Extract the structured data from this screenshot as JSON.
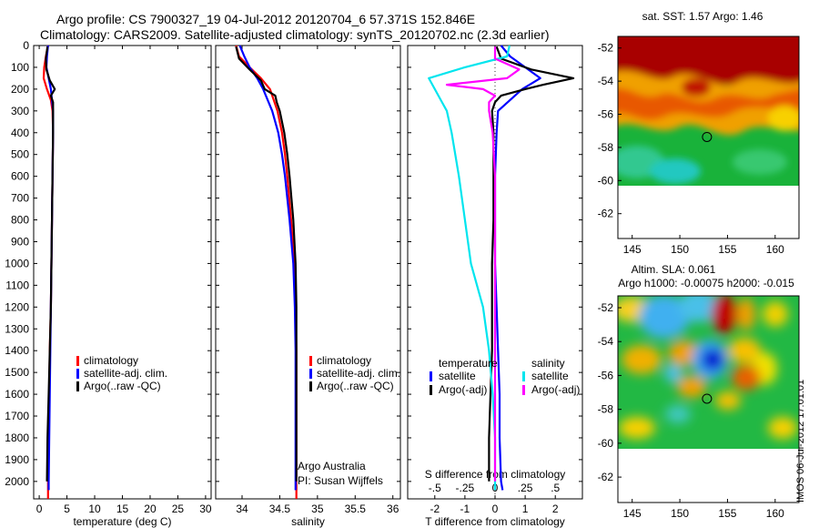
{
  "titles": {
    "line1": "Argo profile: CS 7900327_19 04-Jul-2012 20120704_6 57.371S 152.846E",
    "line2": "Climatology: CARS2009. Satellite-adjusted climatology: synTS_20120702.nc (2.3d earlier)"
  },
  "stamp": "IMOS 06-Jul-2012 17:01:01",
  "colors": {
    "climatology": "#ff0000",
    "satellite": "#0000ff",
    "argo": "#000000",
    "satellite_salinity": "#00e5ee",
    "argo_salinity_adj": "#ff00ff"
  },
  "chart_data": [
    {
      "type": "line",
      "id": "temperature",
      "xlabel": "temperature (deg C)",
      "ylim": [
        2080,
        0
      ],
      "xlim": [
        -1,
        31
      ],
      "xticks": [
        0,
        5,
        10,
        15,
        20,
        25,
        30
      ],
      "yticks": [
        0,
        100,
        200,
        300,
        400,
        500,
        600,
        700,
        800,
        900,
        1000,
        1100,
        1200,
        1300,
        1400,
        1500,
        1600,
        1700,
        1800,
        1900,
        2000
      ],
      "legend": [
        "climatology",
        "satellite-adj. clim.",
        "Argo(..raw -QC)"
      ],
      "series": [
        {
          "name": "climatology",
          "color": "#ff0000",
          "depth": [
            0,
            50,
            100,
            150,
            200,
            250,
            300,
            400,
            600,
            800,
            1000,
            1200,
            1400,
            1600,
            1800,
            2000,
            2080
          ],
          "values": [
            1.6,
            1.2,
            0.9,
            0.8,
            1.4,
            2.1,
            2.4,
            2.5,
            2.4,
            2.3,
            2.2,
            2.1,
            1.9,
            1.8,
            1.7,
            1.6,
            1.6
          ]
        },
        {
          "name": "satellite-adj. clim.",
          "color": "#0000ff",
          "depth": [
            0,
            50,
            100,
            150,
            200,
            250,
            300,
            400,
            600,
            800,
            1000,
            1200,
            1400,
            1600,
            1800,
            2000,
            2040
          ],
          "values": [
            1.6,
            1.4,
            1.3,
            1.7,
            2.1,
            2.3,
            2.5,
            2.5,
            2.4,
            2.3,
            2.2,
            2.1,
            2.0,
            1.9,
            1.8,
            1.7,
            1.7
          ]
        },
        {
          "name": "Argo(..raw -QC)",
          "color": "#000000",
          "depth": [
            5,
            60,
            110,
            160,
            200,
            230,
            260,
            300,
            400,
            600,
            800,
            1000,
            1200,
            1400,
            1600,
            1800,
            2000
          ],
          "values": [
            1.5,
            1.2,
            1.3,
            1.9,
            2.8,
            2.1,
            2.5,
            2.5,
            2.5,
            2.4,
            2.3,
            2.2,
            2.1,
            1.9,
            1.7,
            1.5,
            1.4
          ]
        }
      ]
    },
    {
      "type": "line",
      "id": "salinity",
      "xlabel": "salinity",
      "ylim": [
        2080,
        0
      ],
      "xlim": [
        33.65,
        36.1
      ],
      "xticks": [
        34,
        34.5,
        35,
        35.5,
        36
      ],
      "legend": [
        "climatology",
        "satellite-adj. clim.",
        "Argo(..raw -QC)"
      ],
      "annotation": [
        "Argo Australia",
        "PI: Susan Wijffels"
      ],
      "series": [
        {
          "name": "climatology",
          "color": "#ff0000",
          "depth": [
            0,
            50,
            100,
            150,
            200,
            300,
            400,
            500,
            600,
            800,
            1000,
            1200,
            1400,
            1600,
            1800,
            2000,
            2080
          ],
          "values": [
            33.92,
            33.96,
            34.1,
            34.25,
            34.37,
            34.47,
            34.53,
            34.57,
            34.6,
            34.65,
            34.69,
            34.71,
            34.72,
            34.72,
            34.72,
            34.72,
            34.72
          ]
        },
        {
          "name": "satellite-adj. clim.",
          "color": "#0000ff",
          "depth": [
            0,
            50,
            100,
            150,
            200,
            300,
            400,
            500,
            600,
            800,
            1000,
            1200,
            1400,
            1600,
            1800,
            2000,
            2040
          ],
          "values": [
            33.97,
            34.03,
            34.1,
            34.2,
            34.28,
            34.4,
            34.48,
            34.53,
            34.57,
            34.63,
            34.68,
            34.7,
            34.71,
            34.71,
            34.71,
            34.71,
            34.71
          ]
        },
        {
          "name": "Argo(..raw -QC)",
          "color": "#000000",
          "depth": [
            5,
            60,
            110,
            160,
            200,
            230,
            260,
            300,
            400,
            500,
            600,
            800,
            1000,
            1200,
            1400,
            1600,
            1800,
            2000
          ],
          "values": [
            33.92,
            33.96,
            34.1,
            34.25,
            34.3,
            34.44,
            34.46,
            34.5,
            34.56,
            34.6,
            34.63,
            34.68,
            34.71,
            34.72,
            34.72,
            34.72,
            34.72,
            34.72
          ]
        }
      ]
    },
    {
      "type": "line",
      "id": "differences",
      "xlabel": "T difference from climatology",
      "xlabel_top": "S difference from climatology",
      "ylim": [
        2080,
        0
      ],
      "xlim": [
        -2.9,
        2.9
      ],
      "xticks": [
        -2,
        -1,
        0,
        1,
        2
      ],
      "xticks_top": [
        -0.5,
        -0.25,
        0,
        0.25,
        0.5
      ],
      "legend_groups": [
        {
          "title": "temperature",
          "items": [
            "satellite",
            "Argo(-adj)"
          ]
        },
        {
          "title": "salinity",
          "items": [
            "satellite",
            "Argo(-adj)"
          ]
        }
      ],
      "series": [
        {
          "name": "temperature satellite",
          "color": "#0000ff",
          "depth": [
            0,
            50,
            100,
            150,
            200,
            300,
            400,
            600,
            800,
            1000,
            1200,
            1400,
            1600,
            1800,
            2000,
            2040
          ],
          "values": [
            0.2,
            0.5,
            1.0,
            1.5,
            0.9,
            0.1,
            0.05,
            0.0,
            0.0,
            0.0,
            0.05,
            0.1,
            0.15,
            0.15,
            0.2,
            0.25
          ]
        },
        {
          "name": "temperature Argo(-adj)",
          "color": "#000000",
          "depth": [
            5,
            60,
            110,
            150,
            180,
            200,
            230,
            260,
            300,
            400,
            600,
            800,
            1000,
            1200,
            1400,
            1600,
            1800,
            1900,
            2000
          ],
          "values": [
            0.05,
            0.2,
            1.2,
            2.6,
            1.6,
            1.0,
            0.2,
            0.0,
            -0.1,
            -0.05,
            -0.05,
            -0.05,
            -0.1,
            -0.1,
            -0.1,
            -0.15,
            -0.2,
            -0.2,
            -0.2
          ]
        },
        {
          "name": "salinity satellite",
          "color": "#00e5ee",
          "depth": [
            0,
            50,
            100,
            150,
            200,
            250,
            300,
            400,
            600,
            800,
            1000,
            1200,
            1400,
            1600,
            1800,
            2000,
            2040
          ],
          "values": [
            0.12,
            0.1,
            -0.25,
            -0.55,
            -0.5,
            -0.45,
            -0.4,
            -0.36,
            -0.3,
            -0.25,
            -0.2,
            -0.1,
            -0.05,
            -0.02,
            0.0,
            0.0,
            0.0
          ]
        },
        {
          "name": "salinity Argo(-adj)",
          "color": "#ff00ff",
          "depth": [
            5,
            60,
            110,
            150,
            180,
            200,
            230,
            260,
            300,
            400,
            600,
            800,
            1000,
            1200,
            1400,
            1600,
            1800,
            2000
          ],
          "values": [
            0.0,
            0.0,
            0.2,
            0.1,
            -0.4,
            -0.1,
            0.0,
            -0.05,
            -0.05,
            -0.02,
            0.0,
            0.0,
            0.0,
            0.0,
            0.0,
            0.0,
            0.0,
            0.0
          ]
        }
      ]
    },
    {
      "type": "heatmap",
      "id": "sst-map",
      "title": "sat. SST: 1.57 Argo: 1.46",
      "xticks": [
        145,
        150,
        155,
        160
      ],
      "yticks": [
        -52,
        -54,
        -56,
        -58,
        -60,
        -62
      ],
      "xlim": [
        143.5,
        162.5
      ],
      "ylim": [
        -63.5,
        -51.3
      ],
      "data_ylim": [
        -60,
        -51.3
      ],
      "float_position": [
        152.846,
        -57.371
      ]
    },
    {
      "type": "heatmap",
      "id": "sla-map",
      "title": "Altim. SLA: 0.061",
      "subtitle": "Argo h1000: -0.00075 h2000: -0.015",
      "xticks": [
        145,
        150,
        155,
        160
      ],
      "yticks": [
        -52,
        -54,
        -56,
        -58,
        -60,
        -62
      ],
      "xlim": [
        143.5,
        162.5
      ],
      "ylim": [
        -63.5,
        -51.3
      ],
      "data_ylim": [
        -60,
        -51.3
      ],
      "float_position": [
        152.846,
        -57.371
      ]
    }
  ]
}
